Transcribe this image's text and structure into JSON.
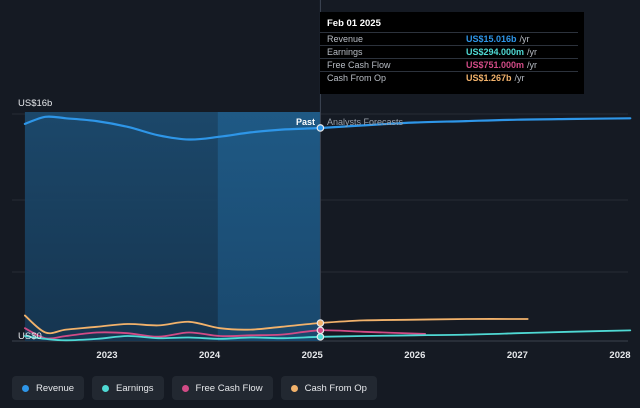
{
  "chart_data": {
    "type": "line",
    "y_top_label": "US$16b",
    "y_bottom_label": "US$0",
    "x_ticks": [
      "2023",
      "2024",
      "2025",
      "2026",
      "2027",
      "2028"
    ],
    "past_label": "Past",
    "forecast_label": "Analysts Forecasts",
    "divider_date": "2025-02-01",
    "ylim": [
      0,
      16
    ],
    "colors": {
      "Revenue": "#2e96e8",
      "Earnings": "#4fd9d4",
      "Free Cash Flow": "#d14b86",
      "Cash From Op": "#f2b26b"
    },
    "series": [
      {
        "name": "Revenue",
        "x": [
          2022.2,
          2022.4,
          2022.6,
          2022.9,
          2023.2,
          2023.5,
          2023.8,
          2024.1,
          2024.4,
          2024.7,
          2025.08,
          2025.5,
          2026.0,
          2026.5,
          2027.0,
          2027.5,
          2028.1
        ],
        "values": [
          15.3,
          15.8,
          15.7,
          15.5,
          15.1,
          14.5,
          14.2,
          14.4,
          14.7,
          14.9,
          15.016,
          15.2,
          15.4,
          15.5,
          15.6,
          15.65,
          15.7
        ]
      },
      {
        "name": "Earnings",
        "x": [
          2022.2,
          2022.4,
          2022.6,
          2022.9,
          2023.2,
          2023.5,
          2023.8,
          2024.1,
          2024.4,
          2024.7,
          2025.08,
          2025.5,
          2026.0,
          2026.5,
          2027.0,
          2027.5,
          2028.1
        ],
        "values": [
          0.35,
          0.15,
          0.05,
          0.15,
          0.35,
          0.2,
          0.25,
          0.15,
          0.25,
          0.2,
          0.294,
          0.35,
          0.4,
          0.45,
          0.55,
          0.65,
          0.75
        ]
      },
      {
        "name": "Free Cash Flow",
        "x": [
          2022.2,
          2022.4,
          2022.6,
          2022.9,
          2023.2,
          2023.5,
          2023.8,
          2024.1,
          2024.4,
          2024.7,
          2025.08,
          2025.5,
          2026.1
        ],
        "values": [
          0.9,
          0.2,
          0.35,
          0.6,
          0.55,
          0.3,
          0.6,
          0.35,
          0.4,
          0.45,
          0.751,
          0.65,
          0.5
        ]
      },
      {
        "name": "Cash From Op",
        "x": [
          2022.2,
          2022.4,
          2022.6,
          2022.9,
          2023.2,
          2023.5,
          2023.8,
          2024.1,
          2024.4,
          2024.7,
          2025.08,
          2025.5,
          2026.0,
          2026.5,
          2027.1
        ],
        "values": [
          1.8,
          0.6,
          0.8,
          1.0,
          1.2,
          1.1,
          1.35,
          0.9,
          0.8,
          1.0,
          1.267,
          1.45,
          1.5,
          1.55,
          1.55
        ]
      }
    ],
    "tooltip": {
      "date": "Feb 01 2025",
      "rows": [
        {
          "label": "Revenue",
          "value": "US$15.016b",
          "unit": "/yr",
          "color": "#2e96e8"
        },
        {
          "label": "Earnings",
          "value": "US$294.000m",
          "unit": "/yr",
          "color": "#4fd9d4"
        },
        {
          "label": "Free Cash Flow",
          "value": "US$751.000m",
          "unit": "/yr",
          "color": "#d14b86"
        },
        {
          "label": "Cash From Op",
          "value": "US$1.267b",
          "unit": "/yr",
          "color": "#f2b26b"
        }
      ]
    }
  },
  "legend": [
    {
      "label": "Revenue",
      "color": "#2e96e8"
    },
    {
      "label": "Earnings",
      "color": "#4fd9d4"
    },
    {
      "label": "Free Cash Flow",
      "color": "#d14b86"
    },
    {
      "label": "Cash From Op",
      "color": "#f2b26b"
    }
  ]
}
